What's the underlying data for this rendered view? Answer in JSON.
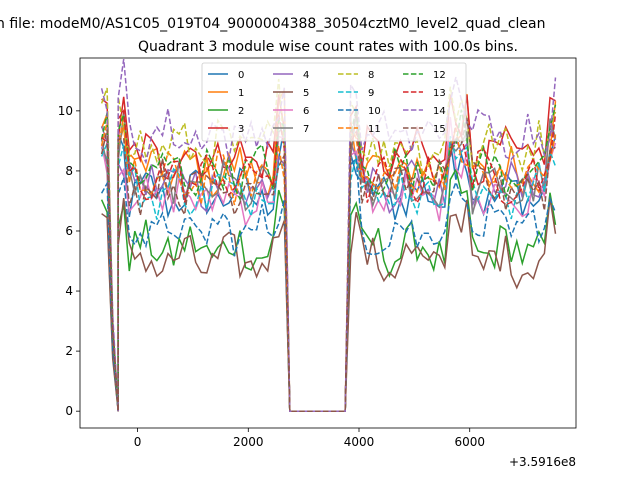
{
  "suptitle": "n file: modeM0/AS1C05_019T04_9000004388_30504cztM0_level2_quad_clean",
  "chart_data": {
    "type": "line",
    "title": "Quadrant 3 module wise count rates with 100.0s bins.",
    "xlabel": "",
    "ylabel": "",
    "x_offset_label": "+3.5916e8",
    "xlim": [
      -1040,
      7920
    ],
    "ylim": [
      -0.56,
      11.76
    ],
    "xticks": [
      0,
      2000,
      4000,
      6000
    ],
    "xtick_labels": [
      "0",
      "2000",
      "4000",
      "6000"
    ],
    "yticks": [
      0,
      2,
      4,
      6,
      8,
      10
    ],
    "ytick_labels": [
      "0",
      "2",
      "4",
      "6",
      "8",
      "10"
    ],
    "grid": false,
    "legend": {
      "position": "upper center",
      "ncol": 4
    },
    "segments": [
      {
        "x_start": -650,
        "x_end": -350,
        "profile": "drop"
      },
      {
        "x_start": -350,
        "x_end": 2650,
        "profile": "active"
      },
      {
        "x_start": 2750,
        "x_end": 3750,
        "profile": "zero"
      },
      {
        "x_start": 3850,
        "x_end": 5750,
        "profile": "active"
      },
      {
        "x_start": 5850,
        "x_end": 7550,
        "profile": "active"
      }
    ],
    "bin_s": 100,
    "series": [
      {
        "name": "0",
        "color": "#1f77b4",
        "dash": "solid",
        "level": 7.2
      },
      {
        "name": "1",
        "color": "#ff7f0e",
        "dash": "solid",
        "level": 8.0
      },
      {
        "name": "2",
        "color": "#2ca02c",
        "dash": "solid",
        "level": 5.4
      },
      {
        "name": "3",
        "color": "#d62728",
        "dash": "solid",
        "level": 8.5
      },
      {
        "name": "4",
        "color": "#9467bd",
        "dash": "solid",
        "level": 7.6
      },
      {
        "name": "5",
        "color": "#8c564b",
        "dash": "solid",
        "level": 5.0
      },
      {
        "name": "6",
        "color": "#e377c2",
        "dash": "solid",
        "level": 7.1
      },
      {
        "name": "7",
        "color": "#7f7f7f",
        "dash": "solid",
        "level": 7.4
      },
      {
        "name": "8",
        "color": "#bcbd22",
        "dash": "dashed",
        "level": 8.8
      },
      {
        "name": "9",
        "color": "#17becf",
        "dash": "dashed",
        "level": 7.3
      },
      {
        "name": "10",
        "color": "#1f77b4",
        "dash": "dashed",
        "level": 6.0
      },
      {
        "name": "11",
        "color": "#ff7f0e",
        "dash": "dashed",
        "level": 7.7
      },
      {
        "name": "12",
        "color": "#2ca02c",
        "dash": "dashed",
        "level": 8.0
      },
      {
        "name": "13",
        "color": "#d62728",
        "dash": "dashed",
        "level": 7.8
      },
      {
        "name": "14",
        "color": "#9467bd",
        "dash": "dashed",
        "level": 9.2
      },
      {
        "name": "15",
        "color": "#8c564b",
        "dash": "dashed",
        "level": 7.5
      }
    ]
  }
}
